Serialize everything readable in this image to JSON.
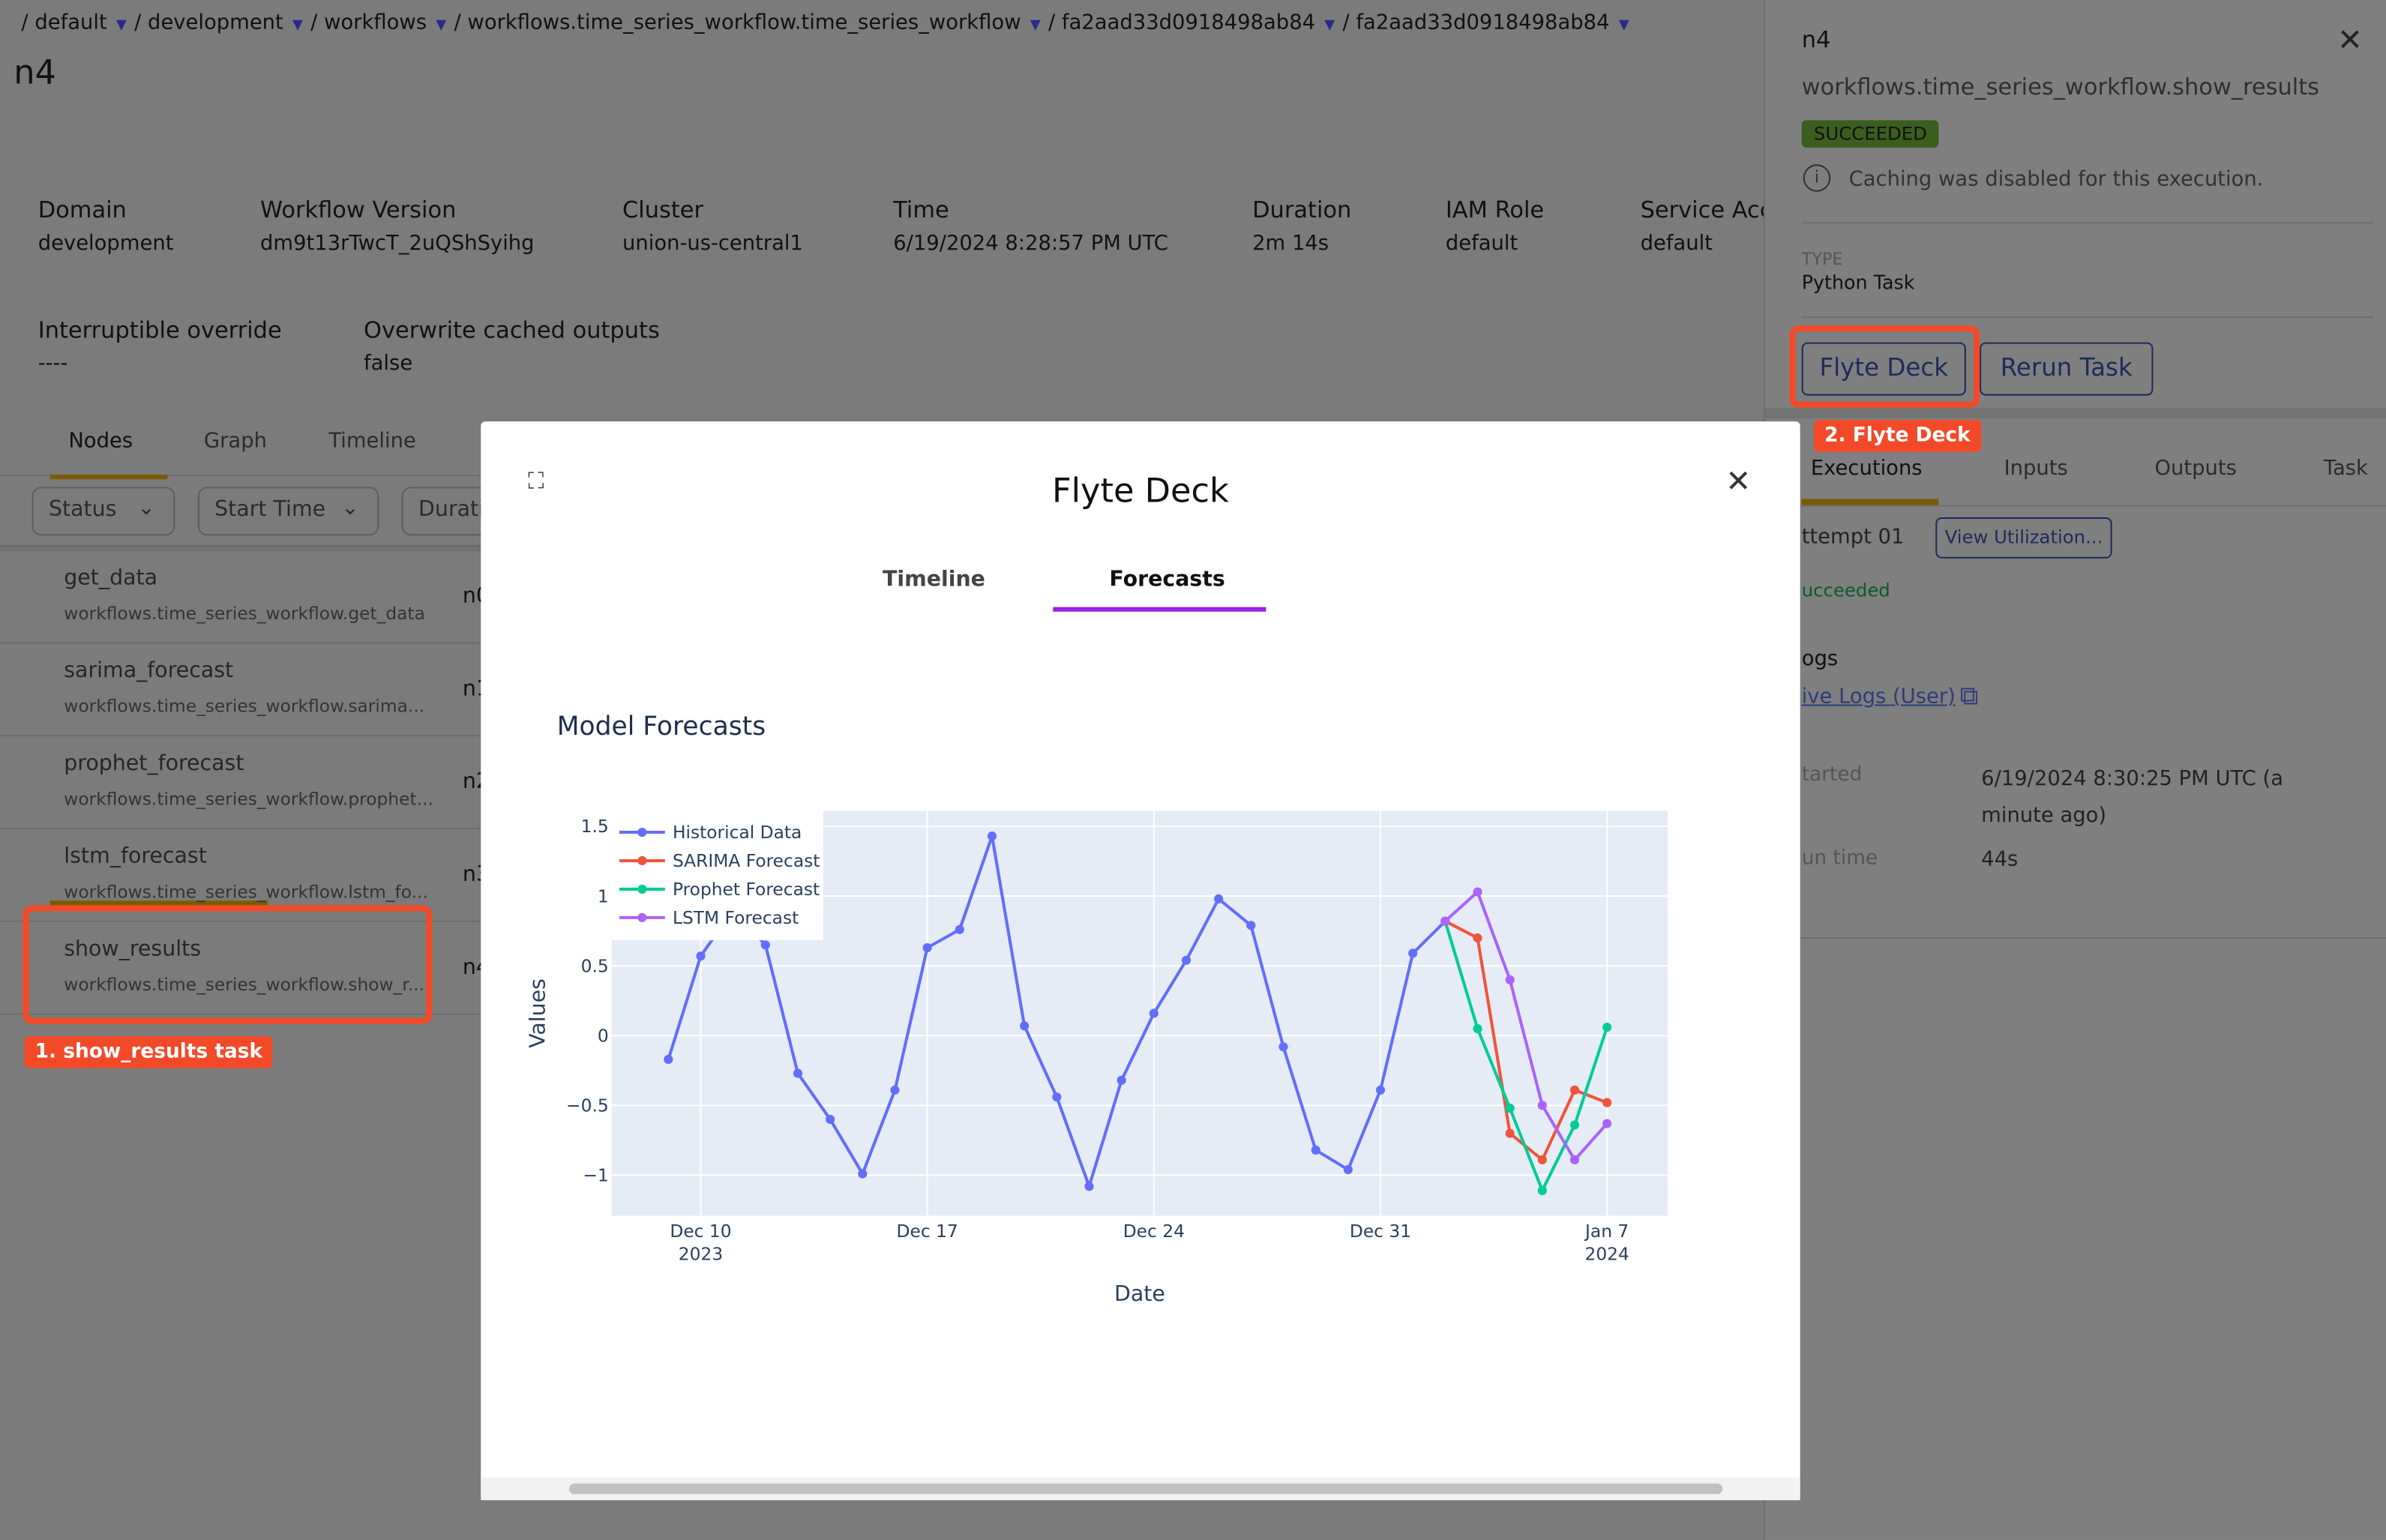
{
  "breadcrumb": [
    {
      "label": "/ default"
    },
    {
      "label": "/ development"
    },
    {
      "label": "/ workflows"
    },
    {
      "label": "/ workflows.time_series_workflow.time_series_workflow"
    },
    {
      "label": "/ fa2aad33d0918498ab84"
    },
    {
      "label": "/ fa2aad33d0918498ab84"
    }
  ],
  "page_title": "n4",
  "meta": [
    {
      "label": "Domain",
      "value": "development"
    },
    {
      "label": "Workflow Version",
      "value": "dm9t13rTwcT_2uQShSyihg"
    },
    {
      "label": "Cluster",
      "value": "union-us-central1"
    },
    {
      "label": "Time",
      "value": "6/19/2024 8:28:57 PM UTC"
    },
    {
      "label": "Duration",
      "value": "2m 14s"
    },
    {
      "label": "IAM Role",
      "value": "default"
    },
    {
      "label": "Service Acc",
      "value": "default"
    },
    {
      "label": "Interruptible override",
      "value": "----"
    },
    {
      "label": "Overwrite cached outputs",
      "value": "false"
    }
  ],
  "main_tabs": [
    {
      "label": "Nodes",
      "active": true
    },
    {
      "label": "Graph"
    },
    {
      "label": "Timeline"
    }
  ],
  "filters": [
    {
      "label": "Status"
    },
    {
      "label": "Start Time"
    },
    {
      "label": "Durati"
    }
  ],
  "nodes": [
    {
      "name": "get_data",
      "task": "workflows.time_series_workflow.get_data",
      "id": "n0"
    },
    {
      "name": "sarima_forecast",
      "task": "workflows.time_series_workflow.sarima...",
      "id": "n1"
    },
    {
      "name": "prophet_forecast",
      "task": "workflows.time_series_workflow.prophet...",
      "id": "n2"
    },
    {
      "name": "lstm_forecast",
      "task": "workflows.time_series_workflow.lstm_fo...",
      "id": "n3"
    },
    {
      "name": "show_results",
      "task": "workflows.time_series_workflow.show_r...",
      "id": "n4"
    }
  ],
  "annotations": {
    "step1": "1. show_results task",
    "step2": "2. Flyte Deck",
    "color": "#f24a29"
  },
  "panel": {
    "title": "n4",
    "task_name": "workflows.time_series_workflow.show_results",
    "status": "SUCCEEDED",
    "status_color": "#3a5e1e",
    "caching_note": "Caching was disabled for this execution.",
    "type_label": "TYPE",
    "type_value": "Python Task",
    "flyte_deck_button": "Flyte Deck",
    "rerun_button": "Rerun Task",
    "tabs": [
      {
        "label": "Executions",
        "active": true
      },
      {
        "label": "Inputs"
      },
      {
        "label": "Outputs"
      },
      {
        "label": "Task"
      }
    ],
    "attempt": "ttempt 01",
    "view_utilization": "View Utilization...",
    "attempt_status": "ucceeded",
    "logs_heading": "ogs",
    "logs_link": "ive Logs (User)",
    "started_label": "tarted",
    "started_value": "6/19/2024 8:30:25 PM UTC (a minute ago)",
    "runtime_label": "un time",
    "runtime_value": "44s"
  },
  "modal": {
    "title": "Flyte Deck",
    "tabs": [
      {
        "label": "Timeline"
      },
      {
        "label": "Forecasts",
        "active": true
      }
    ],
    "accent": "#9b1fe8",
    "section_title": "Model Forecasts"
  },
  "chart_data": {
    "type": "line",
    "title": "",
    "xlabel": "Date",
    "ylabel": "Values",
    "xlim": [
      "2023-12-07T06:00",
      "2024-01-08T21:00"
    ],
    "ylim": [
      -1.29,
      1.61
    ],
    "grid": true,
    "legend_position": "top-left",
    "x_ticks": [
      {
        "date": "2023-12-10",
        "label": "Dec 10",
        "sub": "2023"
      },
      {
        "date": "2023-12-17",
        "label": "Dec 17",
        "sub": ""
      },
      {
        "date": "2023-12-24",
        "label": "Dec 24",
        "sub": ""
      },
      {
        "date": "2023-12-31",
        "label": "Dec 31",
        "sub": ""
      },
      {
        "date": "2024-01-07",
        "label": "Jan 7",
        "sub": "2024"
      }
    ],
    "y_ticks": [
      {
        "value": 1.5,
        "label": "1.5"
      },
      {
        "value": 1,
        "label": "1"
      },
      {
        "value": 0.5,
        "label": "0.5"
      },
      {
        "value": 0,
        "label": "0"
      },
      {
        "value": -0.5,
        "label": "−0.5"
      },
      {
        "value": -1,
        "label": "−1"
      }
    ],
    "series": [
      {
        "name": "Historical Data",
        "color": "#636efa",
        "x": [
          "2023-12-09",
          "2023-12-10",
          "2023-12-11",
          "2023-12-12",
          "2023-12-13",
          "2023-12-14",
          "2023-12-15",
          "2023-12-16",
          "2023-12-17",
          "2023-12-18",
          "2023-12-19",
          "2023-12-20",
          "2023-12-21",
          "2023-12-22",
          "2023-12-23",
          "2023-12-24",
          "2023-12-25",
          "2023-12-26",
          "2023-12-27",
          "2023-12-28",
          "2023-12-29",
          "2023-12-30",
          "2023-12-31",
          "2024-01-01",
          "2024-01-02"
        ],
        "y": [
          -0.17,
          0.57,
          0.9,
          0.65,
          -0.27,
          -0.6,
          -0.99,
          -0.39,
          0.63,
          0.76,
          1.43,
          0.07,
          -0.44,
          -1.08,
          -0.32,
          0.16,
          0.54,
          0.98,
          0.79,
          -0.08,
          -0.82,
          -0.96,
          -0.39,
          0.59,
          0.82
        ]
      },
      {
        "name": "SARIMA Forecast",
        "color": "#ef553b",
        "x": [
          "2024-01-02",
          "2024-01-03",
          "2024-01-04",
          "2024-01-05",
          "2024-01-06",
          "2024-01-07"
        ],
        "y": [
          0.82,
          0.7,
          -0.7,
          -0.89,
          -0.39,
          -0.48
        ]
      },
      {
        "name": "Prophet Forecast",
        "color": "#00cc96",
        "x": [
          "2024-01-02",
          "2024-01-03",
          "2024-01-04",
          "2024-01-05",
          "2024-01-06",
          "2024-01-07"
        ],
        "y": [
          0.82,
          0.05,
          -0.52,
          -1.11,
          -0.64,
          0.06
        ]
      },
      {
        "name": "LSTM Forecast",
        "color": "#ab63fa",
        "x": [
          "2024-01-02",
          "2024-01-03",
          "2024-01-04",
          "2024-01-05",
          "2024-01-06",
          "2024-01-07"
        ],
        "y": [
          0.82,
          1.03,
          0.4,
          -0.5,
          -0.89,
          -0.63
        ]
      }
    ]
  }
}
